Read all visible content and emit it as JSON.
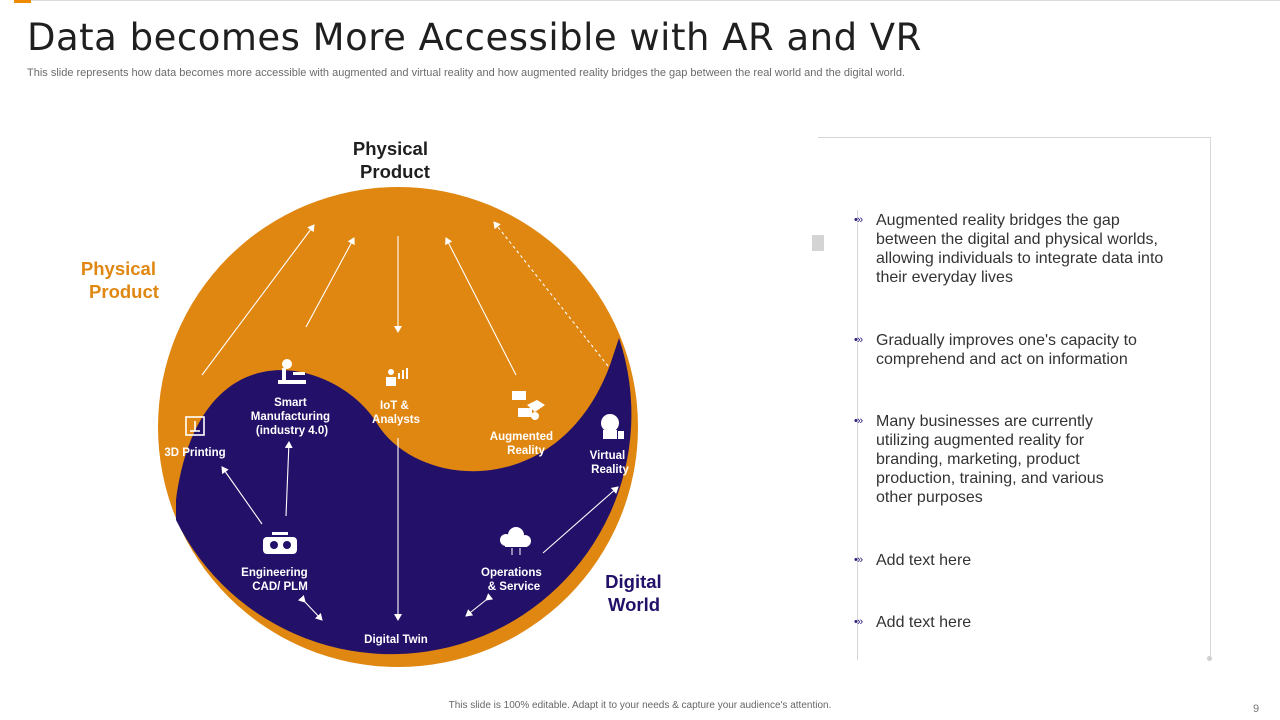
{
  "header": {
    "title": "Data becomes More Accessible with AR and VR",
    "subtitle": "This slide represents how data becomes more accessible with augmented and virtual reality and how augmented reality bridges the gap between the real world and the digital world."
  },
  "diagram": {
    "top_label": [
      "Physical",
      "Product"
    ],
    "left_label": [
      "Physical",
      "Product"
    ],
    "digital_label": [
      "Digital",
      "World"
    ],
    "nodes": {
      "printing": [
        "3D Printing"
      ],
      "smart": [
        "Smart",
        "Manufacturing",
        "(industry 4.0)"
      ],
      "iot": [
        "IoT &",
        "Analysts"
      ],
      "ar": [
        "Augmented",
        "Reality"
      ],
      "vr": [
        "Virtual",
        "Reality"
      ],
      "eng": [
        "Engineering",
        "CAD/ PLM"
      ],
      "ops": [
        "Operations",
        "& Service"
      ],
      "twin": [
        "Digital Twin"
      ]
    },
    "colors": {
      "physical": "#e08712",
      "digital": "#231068",
      "label_orange": "#e08712",
      "label_navy": "#231068"
    }
  },
  "panel": {
    "bullets": [
      "Augmented reality bridges the gap between the digital and physical worlds, allowing individuals to integrate data into their everyday lives",
      "Gradually improves one's capacity to comprehend and act on information",
      "Many businesses are currently utilizing augmented reality for branding, marketing, product production, training, and various other purposes",
      "Add text here",
      "Add text here"
    ]
  },
  "footer": {
    "note": "This slide is 100% editable.  Adapt it to your needs & capture your audience's attention.",
    "page_number": "9"
  }
}
